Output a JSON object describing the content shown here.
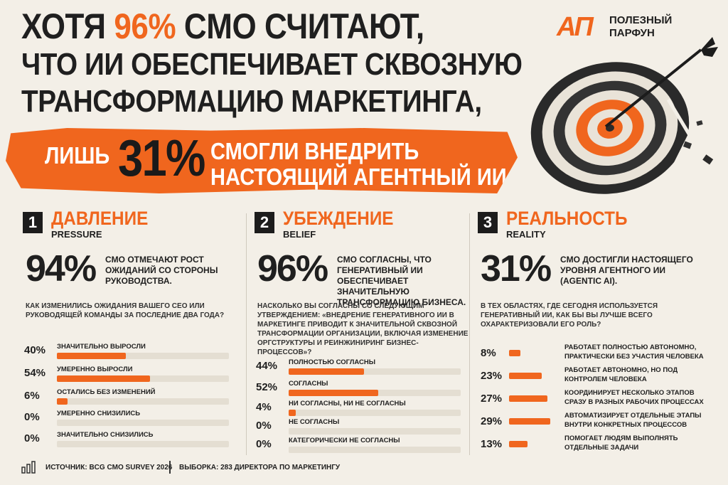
{
  "header": {
    "line1_a": "ХОТЯ ",
    "line1_accent": "96%",
    "line1_b": " CMO СЧИТАЮТ,",
    "line2": "ЧТО ИИ ОБЕСПЕЧИВАЕТ СКВОЗНУЮ",
    "line3": "ТРАНСФОРМАЦИЮ МАРКЕТИНГА,",
    "banner_lead": "ЛИШЬ",
    "banner_big": "31%",
    "banner_rest1": "СМОГЛИ ВНЕДРИТЬ",
    "banner_rest2": "НАСТОЯЩИЙ АГЕНТНЫЙ ИИ"
  },
  "logo": {
    "mark": "АП",
    "line1": "ПОЛЕЗНЫЙ",
    "line2": "ПАРФУН"
  },
  "colors": {
    "accent": "#f0661e",
    "dark": "#1c1c1c",
    "background": "#f3efe7",
    "track": "#e4ded2"
  },
  "columns": [
    {
      "num": "1",
      "title": "ДАВЛЕНИЕ",
      "subtitle": "PRESSURE",
      "stat": "94%",
      "stat_text": "CMO отмечают рост ожиданий со стороны руководства.",
      "question": "Как изменились ожидания вашего CEO или руководящей команды за последние два года?",
      "rows": [
        {
          "pct": "40%",
          "value": 40,
          "label": "Значительно выросли"
        },
        {
          "pct": "54%",
          "value": 54,
          "label": "Умеренно выросли"
        },
        {
          "pct": "6%",
          "value": 6,
          "label": "Остались без изменений"
        },
        {
          "pct": "0%",
          "value": 0,
          "label": "Умеренно снизились"
        },
        {
          "pct": "0%",
          "value": 0,
          "label": "Значительно снизились"
        }
      ]
    },
    {
      "num": "2",
      "title": "УБЕЖДЕНИЕ",
      "subtitle": "BELIEF",
      "stat": "96%",
      "stat_text": "CMO согласны, что генеративный ИИ обеспечивает значительную трансформацию бизнеса.",
      "question": "Насколько вы согласны со следующим утверждением: «Внедрение генеративного ИИ в маркетинге приводит к значительной сквозной трансформации организации, включая изменение оргструктуры и реинжиниринг бизнес-процессов»?",
      "rows": [
        {
          "pct": "44%",
          "value": 44,
          "label": "Полностью согласны"
        },
        {
          "pct": "52%",
          "value": 52,
          "label": "Согласны"
        },
        {
          "pct": "4%",
          "value": 4,
          "label": "Ни согласны, ни не согласны"
        },
        {
          "pct": "0%",
          "value": 0,
          "label": "Не согласны"
        },
        {
          "pct": "0%",
          "value": 0,
          "label": "Категорически не согласны"
        }
      ]
    },
    {
      "num": "3",
      "title": "РЕАЛЬНОСТЬ",
      "subtitle": "REALITY",
      "stat": "31%",
      "stat_text": "CMO достигли настоящего уровня агентного ИИ (agentic AI).",
      "question": "В тех областях, где сегодня используется генеративный ИИ, как бы вы лучше всего охарактеризовали его роль?",
      "rows": [
        {
          "pct": "8%",
          "value": 8,
          "label": "Работает полностью автономно, практически без участия человека"
        },
        {
          "pct": "23%",
          "value": 23,
          "label": "Работает автономно, но под контролем человека"
        },
        {
          "pct": "27%",
          "value": 27,
          "label": "Координирует несколько этапов сразу в разных рабочих процессах"
        },
        {
          "pct": "29%",
          "value": 29,
          "label": "Автоматизирует отдельные этапы внутри конкретных процессов"
        },
        {
          "pct": "13%",
          "value": 13,
          "label": "Помогает людям выполнять отдельные задачи"
        }
      ]
    }
  ],
  "footer": {
    "source": "Источник: BCG CMO Survey 2026",
    "sample": "Выборка: 283 директора по маркетингу"
  }
}
